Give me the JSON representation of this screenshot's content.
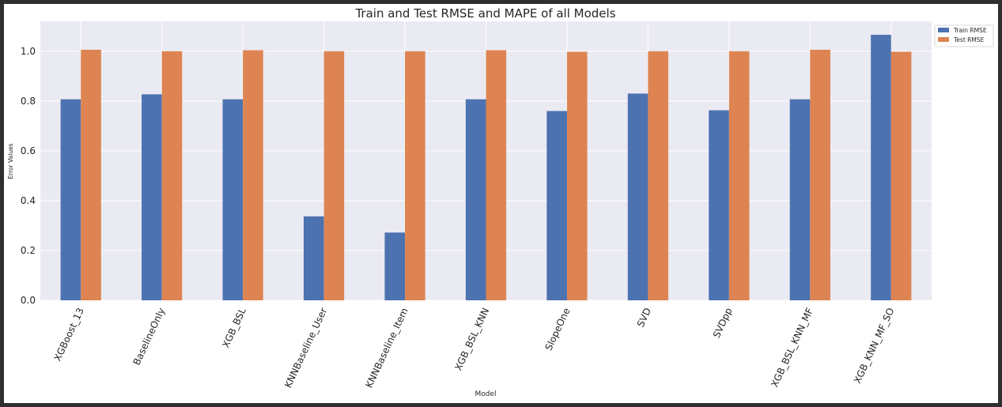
{
  "chart_data": {
    "type": "bar",
    "title": "Train and Test RMSE and MAPE of all Models",
    "xlabel": "Model",
    "ylabel": "Error Values",
    "categories": [
      "XGBoost_13",
      "BaselineOnly",
      "XGB_BSL",
      "KNNBaseline_User",
      "KNNBaseline_Item",
      "XGB_BSL_KNN",
      "SlopeOne",
      "SVD",
      "SVDpp",
      "XGB_BSL_KNN_MF",
      "XGB_KNN_MF_SO"
    ],
    "series": [
      {
        "name": "Train RMSE",
        "values": [
          0.807,
          0.827,
          0.807,
          0.337,
          0.272,
          0.807,
          0.76,
          0.83,
          0.763,
          0.807,
          1.066
        ],
        "color": "#4c72b0"
      },
      {
        "name": "Test RMSE",
        "values": [
          1.006,
          1.0,
          1.004,
          1.0,
          1.0,
          1.004,
          0.998,
          1.0,
          1.0,
          1.006,
          0.998
        ],
        "color": "#dd8452"
      }
    ],
    "ylim": [
      0,
      1.12
    ],
    "yticks": [
      0.0,
      0.2,
      0.4,
      0.6,
      0.8,
      1.0
    ],
    "ytick_labels": [
      "0.0",
      "0.2",
      "0.4",
      "0.6",
      "0.8",
      "1.0"
    ],
    "grid": true,
    "legend_position": "top-right",
    "plot_background": "#eaeaf2"
  }
}
